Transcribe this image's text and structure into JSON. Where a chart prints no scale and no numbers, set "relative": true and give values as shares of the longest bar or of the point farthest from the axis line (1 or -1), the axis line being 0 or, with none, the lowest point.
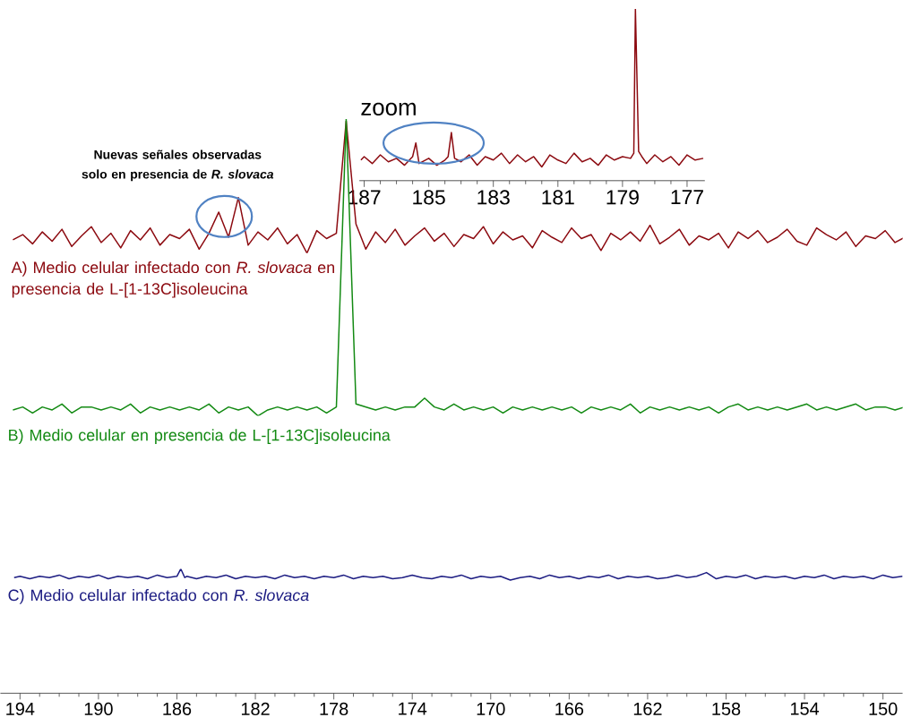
{
  "chart_data": [
    {
      "type": "line",
      "relative": true,
      "xlim": [
        187.15,
        176.45
      ],
      "xticks": [
        187,
        185,
        183,
        181,
        179,
        177
      ],
      "tick_labels": "x",
      "annotations": [
        "zoom"
      ],
      "series": [
        {
          "color": "#8c0a10",
          "x": [
            187.1,
            187.0,
            186.75,
            186.5,
            186.25,
            186.0,
            185.75,
            185.5,
            185.4,
            185.3,
            185.0,
            184.75,
            184.5,
            184.4,
            184.3,
            184.2,
            184.0,
            183.75,
            183.5,
            183.25,
            183.0,
            182.75,
            182.5,
            182.25,
            182.0,
            181.75,
            181.5,
            181.25,
            181.0,
            180.75,
            180.5,
            180.25,
            180.0,
            179.75,
            179.5,
            179.25,
            179.0,
            178.75,
            178.65,
            178.6,
            178.5,
            178.4,
            178.25,
            178.0,
            177.75,
            177.5,
            177.25,
            177.0,
            176.75,
            176.5
          ],
          "values": [
            0.12,
            0.14,
            0.1,
            0.15,
            0.11,
            0.13,
            0.09,
            0.14,
            0.22,
            0.1,
            0.13,
            0.09,
            0.12,
            0.14,
            0.28,
            0.13,
            0.11,
            0.15,
            0.09,
            0.14,
            0.12,
            0.16,
            0.1,
            0.15,
            0.11,
            0.14,
            0.08,
            0.15,
            0.12,
            0.1,
            0.16,
            0.11,
            0.13,
            0.09,
            0.15,
            0.12,
            0.14,
            0.13,
            0.16,
            1,
            0.17,
            0.14,
            0.1,
            0.15,
            0.11,
            0.14,
            0.09,
            0.15,
            0.12,
            0.13
          ]
        }
      ]
    },
    {
      "type": "line",
      "relative": true,
      "tick_labels": false,
      "categories": [
        null,
        null,
        null,
        null,
        null,
        null,
        null,
        null,
        null,
        null,
        null,
        null,
        null,
        null,
        null,
        null,
        null,
        null,
        null,
        null,
        null,
        null,
        null,
        null,
        null,
        null,
        null,
        null,
        null,
        null,
        null,
        null,
        null,
        null,
        null,
        null,
        null,
        null,
        null,
        null,
        null,
        null,
        null,
        null,
        null,
        null,
        null,
        null,
        null,
        null,
        null,
        null,
        null,
        null,
        null,
        null,
        null,
        null,
        null,
        null,
        null,
        null,
        null,
        null,
        null,
        null,
        null,
        null,
        null,
        null,
        null,
        null,
        null,
        null,
        null,
        null,
        null,
        null,
        null,
        null,
        null,
        null,
        null,
        null,
        null,
        null,
        null,
        null,
        null,
        null,
        null,
        null
      ],
      "annotations": [
        "Nuevas señales observadas solo en presencia de *R. slovaca*"
      ],
      "series": [
        {
          "name": "A) Medio celular infectado con *R. slovaca* en presencia de L-[1-13C]isoleucina",
          "color": "#8c0a10",
          "values": [
            0.1,
            0.14,
            0.07,
            0.16,
            0.09,
            0.18,
            0.05,
            0.13,
            0.2,
            0.08,
            0.15,
            0.04,
            0.17,
            0.1,
            0.19,
            0.06,
            0.14,
            0.11,
            0.18,
            0.03,
            0.15,
            0.31,
            0.12,
            0.42,
            0.06,
            0.16,
            0.1,
            0.19,
            0.07,
            0.14,
            0,
            0.17,
            0.11,
            0.15,
            1,
            0.22,
            0.03,
            0.16,
            0.08,
            0.18,
            0.06,
            0.13,
            0.19,
            0.09,
            0.15,
            0.05,
            0.14,
            0.11,
            0.2,
            0.07,
            0.16,
            0.1,
            0.13,
            0.04,
            0.17,
            0.12,
            0.08,
            0.19,
            0.11,
            0.14,
            0.02,
            0.15,
            0.1,
            0.16,
            0.09,
            0.21,
            0.07,
            0.12,
            0.18,
            0.06,
            0.13,
            0.1,
            0.15,
            0.04,
            0.16,
            0.11,
            0.17,
            0.08,
            0.12,
            0.18,
            0.09,
            0.06,
            0.19,
            0.14,
            0.1,
            0.16,
            0.05,
            0.13,
            0.11,
            0.17,
            0.08,
            0.12
          ]
        }
      ]
    },
    {
      "type": "line",
      "relative": true,
      "tick_labels": false,
      "categories": [
        null,
        null,
        null,
        null,
        null,
        null,
        null,
        null,
        null,
        null,
        null,
        null,
        null,
        null,
        null,
        null,
        null,
        null,
        null,
        null,
        null,
        null,
        null,
        null,
        null,
        null,
        null,
        null,
        null,
        null,
        null,
        null,
        null,
        null,
        null,
        null,
        null,
        null,
        null,
        null,
        null,
        null,
        null,
        null,
        null,
        null,
        null,
        null,
        null,
        null,
        null,
        null,
        null,
        null,
        null,
        null,
        null,
        null,
        null,
        null,
        null,
        null,
        null,
        null,
        null,
        null,
        null,
        null,
        null,
        null,
        null,
        null,
        null,
        null,
        null,
        null,
        null,
        null,
        null,
        null,
        null,
        null,
        null,
        null,
        null,
        null,
        null,
        null,
        null,
        null,
        null,
        null
      ],
      "series": [
        {
          "name": "B) Medio celular en presencia de L-[1-13C]isoleucina",
          "color": "#138a13",
          "values": [
            0.02,
            0.03,
            0.01,
            0.03,
            0.02,
            0.04,
            0.01,
            0.03,
            0.03,
            0.02,
            0.03,
            0.02,
            0.04,
            0.01,
            0.03,
            0.02,
            0.03,
            0.02,
            0.03,
            0.02,
            0.04,
            0.01,
            0.03,
            0.02,
            0.03,
            0,
            0.02,
            0.03,
            0.02,
            0.03,
            0.02,
            0.03,
            0.01,
            0.03,
            1,
            0.04,
            0.03,
            0.02,
            0.03,
            0.02,
            0.03,
            0.03,
            0.06,
            0.03,
            0.02,
            0.04,
            0.02,
            0.03,
            0.02,
            0.03,
            0.01,
            0.03,
            0.02,
            0.03,
            0.02,
            0.03,
            0.02,
            0.03,
            0.01,
            0.03,
            0.02,
            0.03,
            0.02,
            0.04,
            0.01,
            0.03,
            0.02,
            0.03,
            0.02,
            0.03,
            0.02,
            0.03,
            0.01,
            0.03,
            0.04,
            0.02,
            0.03,
            0.02,
            0.03,
            0.02,
            0.03,
            0.04,
            0.02,
            0.03,
            0.02,
            0.03,
            0.04,
            0.02,
            0.03,
            0.03,
            0.02,
            0.03
          ]
        }
      ]
    },
    {
      "type": "line",
      "relative": true,
      "xlim": [
        195,
        149
      ],
      "xticks": [
        194,
        190,
        186,
        182,
        178,
        174,
        170,
        166,
        162,
        158,
        154,
        150
      ],
      "tick_labels": "x",
      "series": [
        {
          "name": "C) Medio celular infectado con *R. slovaca*",
          "color": "#1c1c82",
          "x": [
            194.3,
            194.0,
            193.5,
            193.0,
            192.5,
            192.0,
            191.5,
            191.0,
            190.5,
            190.0,
            189.5,
            189.0,
            188.5,
            188.0,
            187.5,
            187.0,
            186.5,
            186.0,
            185.8,
            185.6,
            185.5,
            185.0,
            184.5,
            184.0,
            183.5,
            183.0,
            182.5,
            182.0,
            181.5,
            181.0,
            180.5,
            180.0,
            179.5,
            179.0,
            178.5,
            178.0,
            177.5,
            177.0,
            176.5,
            176.0,
            175.5,
            175.0,
            174.5,
            174.0,
            173.5,
            173.0,
            172.5,
            172.0,
            171.5,
            171.0,
            170.5,
            170.0,
            169.5,
            169.0,
            168.5,
            168.0,
            167.5,
            167.0,
            166.5,
            166.0,
            165.5,
            165.0,
            164.5,
            164.0,
            163.5,
            163.0,
            162.5,
            162.0,
            161.5,
            161.0,
            160.5,
            160.0,
            159.5,
            159.0,
            158.5,
            158.0,
            157.5,
            157.0,
            156.5,
            156.0,
            155.5,
            155.0,
            154.5,
            154.0,
            153.5,
            153.0,
            152.5,
            152.0,
            151.5,
            151.0,
            150.5,
            150.0,
            149.5,
            149.0
          ],
          "values": [
            0.93,
            0.94,
            0.92,
            0.94,
            0.93,
            0.95,
            0.92,
            0.94,
            0.93,
            0.95,
            0.92,
            0.94,
            0.93,
            0.94,
            0.92,
            0.95,
            0.93,
            0.94,
            1,
            0.93,
            0.94,
            0.92,
            0.94,
            0.93,
            0.95,
            0.92,
            0.94,
            0.93,
            0.94,
            0.92,
            0.95,
            0.93,
            0.94,
            0.92,
            0.94,
            0.93,
            0.95,
            0.92,
            0.94,
            0.93,
            0.94,
            0.92,
            0.93,
            0.95,
            0.93,
            0.92,
            0.94,
            0.93,
            0.95,
            0.92,
            0.94,
            0.93,
            0.94,
            0.91,
            0.93,
            0.94,
            0.92,
            0.95,
            0.93,
            0.94,
            0.92,
            0.94,
            0.93,
            0.95,
            0.92,
            0.94,
            0.93,
            0.94,
            0.92,
            0.93,
            0.95,
            0.93,
            0.94,
            0.97,
            0.92,
            0.94,
            0.93,
            0.95,
            0.92,
            0.94,
            0.93,
            0.94,
            0.92,
            0.94,
            0.93,
            0.95,
            0.92,
            0.94,
            0.93,
            0.94,
            0.92,
            0.95,
            0.93,
            0.94
          ]
        }
      ]
    }
  ]
}
